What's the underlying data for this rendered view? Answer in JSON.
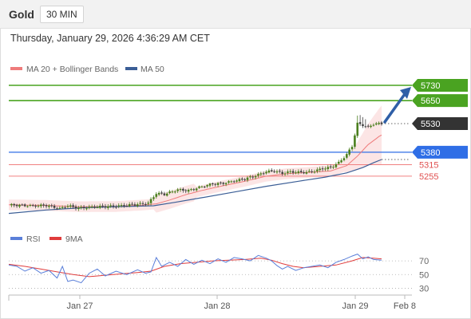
{
  "header": {
    "title": "Gold",
    "timeframe": "30 MIN"
  },
  "timestamp": "Thursday, January 29, 2026 4:36:29 AM CET",
  "colors": {
    "resistance": "#4aa321",
    "support": "#2f6ee6",
    "pivot": "#f08080",
    "current": "#333333",
    "up_candle": "#4b7f1e",
    "down_candle": "#444444",
    "ma20": "#ef7b7b",
    "band_fill": "#fbe0e0",
    "ma50": "#3b5e96",
    "arrow": "#2f5fa7",
    "rsi": "#5a7fd9",
    "rsi_ma": "#e03c3c"
  },
  "chart_data": [
    {
      "type": "candlestick",
      "legend": [
        "MA 20 + Bollinger Bands",
        "MA 50"
      ],
      "ylim": [
        5050,
        5760
      ],
      "x_tick_labels": [
        "Jan 27",
        "Jan 28",
        "Jan 29",
        "Feb 8"
      ],
      "levels": [
        {
          "label": "5730",
          "value": 5730,
          "kind": "resistance"
        },
        {
          "label": "5650",
          "value": 5650,
          "kind": "resistance"
        },
        {
          "label": "5530",
          "value": 5530,
          "kind": "current"
        },
        {
          "label": "5380",
          "value": 5380,
          "kind": "support"
        },
        {
          "label": "5315",
          "value": 5315,
          "kind": "pivot"
        },
        {
          "label": "5255",
          "value": 5255,
          "kind": "pivot"
        }
      ],
      "forecast_target": 5730,
      "close_path": [
        [
          0,
          5105
        ],
        [
          8,
          5100
        ],
        [
          14,
          5102
        ],
        [
          19,
          5085
        ],
        [
          22,
          5100
        ],
        [
          26,
          5088
        ],
        [
          34,
          5095
        ],
        [
          42,
          5100
        ],
        [
          48,
          5108
        ],
        [
          52,
          5114
        ],
        [
          55,
          5165
        ],
        [
          58,
          5160
        ],
        [
          63,
          5184
        ],
        [
          67,
          5180
        ],
        [
          72,
          5200
        ],
        [
          76,
          5215
        ],
        [
          80,
          5218
        ],
        [
          85,
          5232
        ],
        [
          89,
          5245
        ],
        [
          93,
          5262
        ],
        [
          96,
          5278
        ],
        [
          99,
          5282
        ],
        [
          102,
          5270
        ],
        [
          105,
          5278
        ],
        [
          108,
          5275
        ],
        [
          111,
          5275
        ],
        [
          114,
          5282
        ],
        [
          117,
          5295
        ],
        [
          120,
          5300
        ],
        [
          123,
          5325
        ],
        [
          126,
          5368
        ],
        [
          128,
          5412
        ],
        [
          130,
          5530
        ],
        [
          132,
          5522
        ],
        [
          134,
          5510
        ],
        [
          136,
          5528
        ],
        [
          139,
          5530
        ]
      ],
      "ma20_path": [
        [
          0,
          5105
        ],
        [
          14,
          5102
        ],
        [
          26,
          5095
        ],
        [
          40,
          5096
        ],
        [
          50,
          5104
        ],
        [
          55,
          5110
        ],
        [
          60,
          5130
        ],
        [
          66,
          5158
        ],
        [
          72,
          5180
        ],
        [
          80,
          5205
        ],
        [
          88,
          5228
        ],
        [
          96,
          5255
        ],
        [
          104,
          5268
        ],
        [
          112,
          5275
        ],
        [
          120,
          5282
        ],
        [
          126,
          5310
        ],
        [
          130,
          5360
        ],
        [
          134,
          5420
        ],
        [
          138,
          5462
        ],
        [
          139,
          5470
        ]
      ],
      "ma50_path": [
        [
          0,
          5060
        ],
        [
          14,
          5078
        ],
        [
          28,
          5090
        ],
        [
          42,
          5096
        ],
        [
          54,
          5100
        ],
        [
          62,
          5118
        ],
        [
          72,
          5142
        ],
        [
          84,
          5172
        ],
        [
          96,
          5202
        ],
        [
          108,
          5228
        ],
        [
          118,
          5250
        ],
        [
          126,
          5272
        ],
        [
          132,
          5300
        ],
        [
          136,
          5325
        ],
        [
          139,
          5342
        ]
      ]
    },
    {
      "type": "line",
      "legend": [
        "RSI",
        "9MA"
      ],
      "ylim": [
        20,
        90
      ],
      "y_tick_labels": [
        "70",
        "50",
        "30"
      ],
      "y_ticks": [
        70,
        50,
        30
      ],
      "rsi_path": [
        [
          0,
          64
        ],
        [
          3,
          62
        ],
        [
          6,
          55
        ],
        [
          9,
          60
        ],
        [
          12,
          52
        ],
        [
          15,
          56
        ],
        [
          18,
          45
        ],
        [
          20,
          62
        ],
        [
          22,
          40
        ],
        [
          24,
          42
        ],
        [
          27,
          38
        ],
        [
          30,
          52
        ],
        [
          33,
          58
        ],
        [
          36,
          48
        ],
        [
          40,
          55
        ],
        [
          44,
          50
        ],
        [
          48,
          57
        ],
        [
          51,
          52
        ],
        [
          53,
          54
        ],
        [
          55,
          75
        ],
        [
          57,
          62
        ],
        [
          60,
          68
        ],
        [
          63,
          62
        ],
        [
          66,
          72
        ],
        [
          69,
          65
        ],
        [
          72,
          71
        ],
        [
          75,
          66
        ],
        [
          78,
          73
        ],
        [
          81,
          68
        ],
        [
          84,
          75
        ],
        [
          87,
          73
        ],
        [
          90,
          70
        ],
        [
          93,
          78
        ],
        [
          96,
          74
        ],
        [
          98,
          70
        ],
        [
          100,
          63
        ],
        [
          102,
          58
        ],
        [
          104,
          62
        ],
        [
          107,
          56
        ],
        [
          110,
          60
        ],
        [
          113,
          62
        ],
        [
          116,
          64
        ],
        [
          119,
          60
        ],
        [
          122,
          68
        ],
        [
          125,
          72
        ],
        [
          128,
          77
        ],
        [
          130,
          80
        ],
        [
          132,
          73
        ],
        [
          134,
          76
        ],
        [
          136,
          72
        ],
        [
          139,
          71
        ]
      ],
      "rsi_ma_path": [
        [
          0,
          65
        ],
        [
          6,
          62
        ],
        [
          12,
          58
        ],
        [
          18,
          54
        ],
        [
          24,
          50
        ],
        [
          30,
          47
        ],
        [
          36,
          49
        ],
        [
          42,
          51
        ],
        [
          48,
          53
        ],
        [
          53,
          55
        ],
        [
          58,
          62
        ],
        [
          64,
          66
        ],
        [
          70,
          68
        ],
        [
          76,
          70
        ],
        [
          82,
          71
        ],
        [
          88,
          72
        ],
        [
          94,
          74
        ],
        [
          98,
          71
        ],
        [
          102,
          66
        ],
        [
          106,
          62
        ],
        [
          110,
          60
        ],
        [
          116,
          62
        ],
        [
          122,
          64
        ],
        [
          128,
          70
        ],
        [
          132,
          75
        ],
        [
          136,
          74
        ],
        [
          139,
          73
        ]
      ]
    }
  ]
}
